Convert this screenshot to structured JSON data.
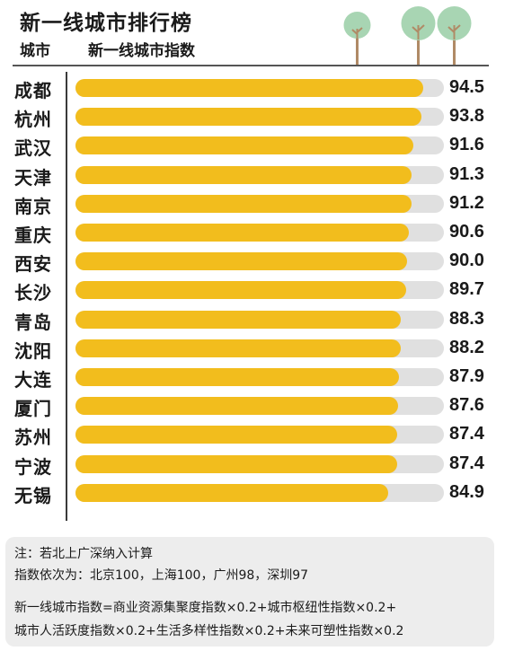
{
  "header": {
    "title": "新一线城市排行榜",
    "col_city": "城市",
    "col_index": "新一线城市指数"
  },
  "colors": {
    "bar_fill": "#f2bd1d",
    "bar_track": "#e0e0e0",
    "note_bg": "#ededed",
    "tree_crown": "#a8d5b3",
    "tree_trunk": "#b08a66"
  },
  "decoration": {
    "icon": "tree-icon",
    "count": 3
  },
  "chart_data": {
    "type": "bar",
    "orientation": "horizontal",
    "title": "新一线城市排行榜",
    "xlabel": "新一线城市指数",
    "ylabel": "城市",
    "xlim": [
      0,
      100
    ],
    "grid": false,
    "categories": [
      "成都",
      "杭州",
      "武汉",
      "天津",
      "南京",
      "重庆",
      "西安",
      "长沙",
      "青岛",
      "沈阳",
      "大连",
      "厦门",
      "苏州",
      "宁波",
      "无锡"
    ],
    "values": [
      94.5,
      93.8,
      91.6,
      91.3,
      91.2,
      90.6,
      90.0,
      89.7,
      88.3,
      88.2,
      87.9,
      87.6,
      87.4,
      87.4,
      84.9
    ],
    "value_labels": [
      "94.5",
      "93.8",
      "91.6",
      "91.3",
      "91.2",
      "90.6",
      "90.0",
      "89.7",
      "88.3",
      "88.2",
      "87.9",
      "87.6",
      "87.4",
      "87.4",
      "84.9"
    ]
  },
  "notes": {
    "line1": "注：若北上广深纳入计算",
    "line2": "指数依次为：北京100，上海100，广州98，深圳97",
    "line3": "新一线城市指数=商业资源集聚度指数×0.2+城市枢纽性指数×0.2+",
    "line4": "城市人活跃度指数×0.2+生活多样性指数×0.2+未来可塑性指数×0.2"
  }
}
